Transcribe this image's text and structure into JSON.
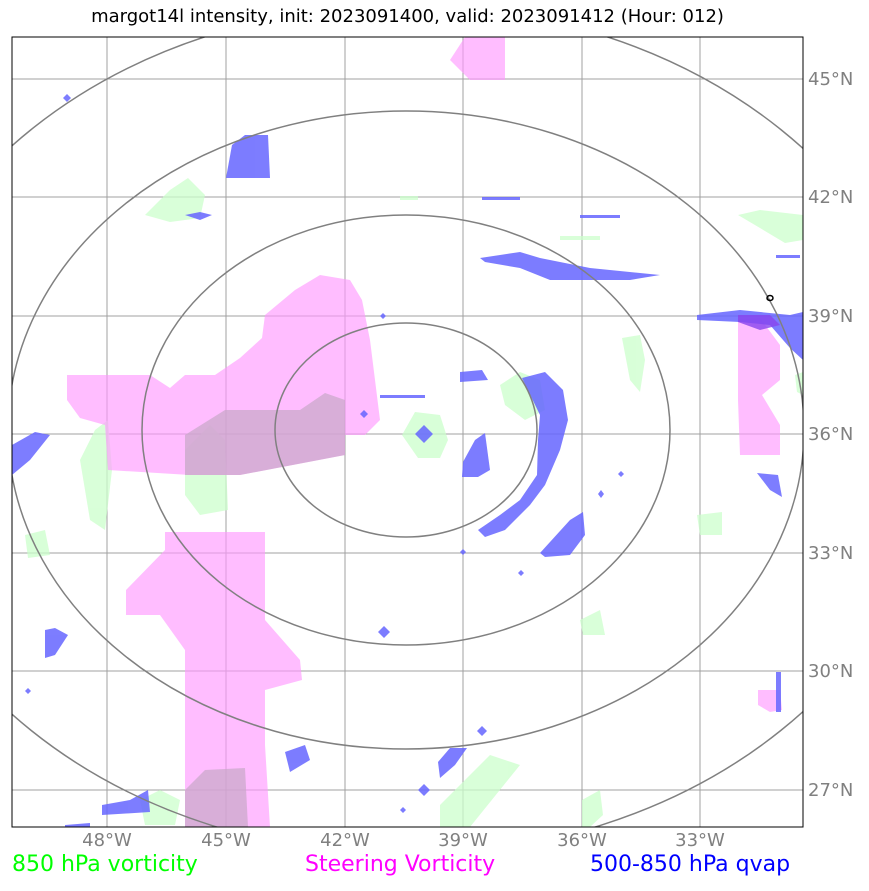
{
  "title": "margot14l intensity, init: 2023091400, valid: 2023091412 (Hour: 012)",
  "axes": {
    "lon_labels": [
      "48°W",
      "45°W",
      "42°W",
      "39°W",
      "36°W",
      "33°W"
    ],
    "lat_labels": [
      "45°N",
      "42°N",
      "39°N",
      "36°N",
      "33°N",
      "30°N",
      "27°N"
    ]
  },
  "legend": [
    {
      "label": "850 hPa vorticity",
      "color": "#00ff00"
    },
    {
      "label": "Steering Vorticity",
      "color": "#ff00ff"
    },
    {
      "label": "500-850 hPa qvap",
      "color": "#0000ff"
    }
  ],
  "colors": {
    "vorticity_fill": "#ccffcc",
    "steering_fill": "#ff99ff",
    "qvap_fill": "#6666ff",
    "grid": "#a0a0a0",
    "range_rings": "#808080"
  }
}
